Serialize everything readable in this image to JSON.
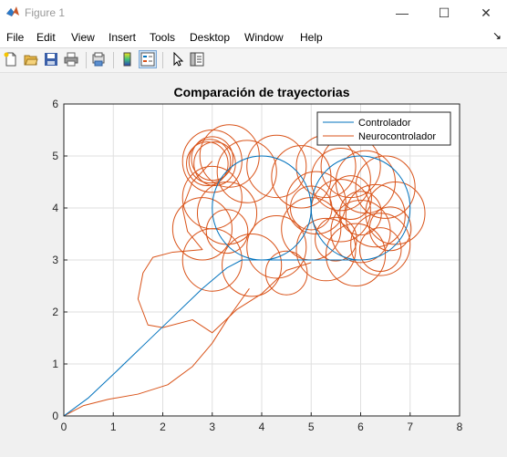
{
  "window": {
    "title": "Figure 1",
    "minimize_glyph": "—",
    "maximize_glyph": "☐",
    "close_glyph": "✕",
    "dock_glyph": "↘"
  },
  "menu": [
    "File",
    "Edit",
    "View",
    "Insert",
    "Tools",
    "Desktop",
    "Window",
    "Help"
  ],
  "toolbar": {
    "icons": [
      "new-figure-icon",
      "open-file-icon",
      "save-icon",
      "print-icon",
      "print-preview-icon",
      "colorbar-icon",
      "legend-icon",
      "pointer-icon",
      "property-editor-icon"
    ],
    "active_icon": "legend-icon"
  },
  "chart_data": {
    "type": "line",
    "title": "Comparación de trayectorias",
    "xlabel": "",
    "ylabel": "",
    "xlim": [
      0,
      8
    ],
    "ylim": [
      0,
      6
    ],
    "xticks": [
      0,
      1,
      2,
      3,
      4,
      5,
      6,
      7,
      8
    ],
    "yticks": [
      0,
      1,
      2,
      3,
      4,
      5,
      6
    ],
    "grid": true,
    "legend_position": "top-right",
    "series": [
      {
        "name": "Controlador",
        "color": "#0072bd",
        "segments": [
          {
            "kind": "polyline",
            "points": [
              [
                0,
                0
              ],
              [
                0.5,
                0.35
              ],
              [
                1.0,
                0.8
              ],
              [
                1.6,
                1.35
              ],
              [
                2.2,
                1.9
              ],
              [
                2.8,
                2.45
              ],
              [
                3.3,
                2.85
              ],
              [
                3.6,
                3.0
              ],
              [
                4.2,
                3.0
              ],
              [
                5.0,
                3.0
              ],
              [
                6.0,
                3.0
              ]
            ]
          },
          {
            "kind": "circle",
            "center": [
              4,
              4
            ],
            "radius": 1
          },
          {
            "kind": "circle",
            "center": [
              6,
              4
            ],
            "radius": 1
          }
        ]
      },
      {
        "name": "Neurocontrolador",
        "color": "#d95319",
        "segments": [
          {
            "kind": "polyline",
            "points": [
              [
                0,
                0
              ],
              [
                0.4,
                0.2
              ],
              [
                0.9,
                0.32
              ],
              [
                1.5,
                0.42
              ],
              [
                2.1,
                0.6
              ],
              [
                2.6,
                0.95
              ],
              [
                3.0,
                1.4
              ],
              [
                3.3,
                1.85
              ],
              [
                3.6,
                2.25
              ],
              [
                3.75,
                2.45
              ]
            ]
          },
          {
            "kind": "polyline",
            "points": [
              [
                3.0,
                4.9
              ],
              [
                2.6,
                4.5
              ],
              [
                2.4,
                4.0
              ],
              [
                2.5,
                3.55
              ],
              [
                2.8,
                3.2
              ],
              [
                2.2,
                3.15
              ],
              [
                1.8,
                3.05
              ],
              [
                1.6,
                2.75
              ],
              [
                1.5,
                2.25
              ],
              [
                1.7,
                1.75
              ],
              [
                2.0,
                1.7
              ],
              [
                2.6,
                1.85
              ],
              [
                3.0,
                1.6
              ],
              [
                3.5,
                2.05
              ],
              [
                4.0,
                2.35
              ],
              [
                4.5,
                2.8
              ],
              [
                5.0,
                2.95
              ]
            ]
          },
          {
            "kind": "circles",
            "radius": 0.6,
            "centers": [
              [
                3.0,
                4.9
              ],
              [
                3.0,
                4.2
              ],
              [
                3.35,
                5.0
              ],
              [
                3.7,
                4.7
              ],
              [
                4.3,
                4.8
              ],
              [
                4.8,
                4.6
              ],
              [
                5.3,
                4.8
              ],
              [
                5.6,
                4.55
              ],
              [
                6.1,
                4.5
              ],
              [
                6.5,
                4.4
              ],
              [
                6.7,
                3.9
              ],
              [
                6.4,
                3.3
              ],
              [
                5.9,
                3.1
              ],
              [
                5.3,
                3.2
              ],
              [
                5.0,
                3.6
              ],
              [
                5.1,
                4.1
              ],
              [
                5.6,
                3.95
              ],
              [
                6.0,
                3.55
              ],
              [
                6.3,
                3.85
              ],
              [
                5.8,
                4.8
              ],
              [
                2.8,
                3.6
              ],
              [
                3.3,
                3.9
              ],
              [
                3.0,
                3.0
              ],
              [
                3.8,
                2.9
              ],
              [
                4.3,
                3.25
              ]
            ]
          },
          {
            "kind": "circles",
            "radius": 0.42,
            "centers": [
              [
                2.95,
                4.9
              ],
              [
                3.0,
                4.95
              ],
              [
                3.05,
                4.85
              ],
              [
                2.9,
                4.85
              ],
              [
                5.0,
                4.0
              ],
              [
                5.5,
                3.4
              ],
              [
                6.4,
                3.2
              ],
              [
                6.0,
                3.9
              ],
              [
                4.5,
                2.75
              ],
              [
                3.3,
                3.55
              ],
              [
                6.6,
                3.6
              ],
              [
                5.8,
                4.2
              ]
            ]
          }
        ]
      }
    ]
  }
}
